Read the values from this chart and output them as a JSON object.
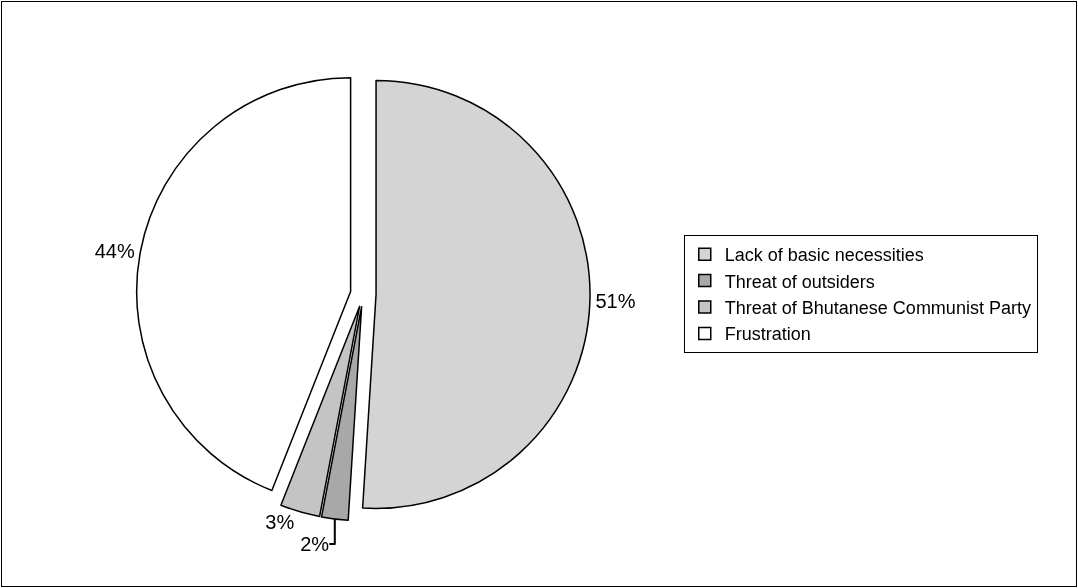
{
  "chart_data": {
    "type": "pie",
    "categories": [
      "Lack of basic necessities",
      "Threat of outsiders",
      "Threat of Bhutanese Communist Party",
      "Frustration"
    ],
    "values": [
      51,
      2,
      3,
      44
    ],
    "colors": [
      "#d4d4d4",
      "#a8a8a8",
      "#c4c4c4",
      "#ffffff"
    ],
    "value_labels": [
      "51%",
      "2%",
      "3%",
      "44%"
    ],
    "legend": "right"
  }
}
